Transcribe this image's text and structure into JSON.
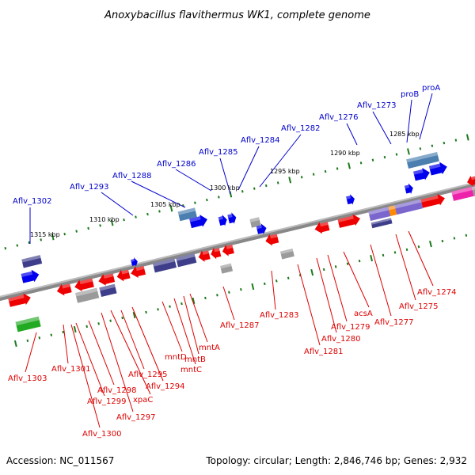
{
  "title": "Anoxybacillus flavithermus WK1, complete genome",
  "footer": {
    "accession": "Accession: NC_011567",
    "summary": "Topology: circular; Length: 2,846,746 bp; Genes: 2,932"
  },
  "colors": {
    "backbone": "#888888",
    "tick": "#1c7a1c",
    "label_top": "#0000cc",
    "label_bottom": "#dd0000",
    "gene_red": "#ee0000",
    "gene_blue": "#0000ee",
    "gene_navy": "#3d3d8a",
    "gene_grey": "#9a9a9a",
    "gene_green": "#22aa22",
    "gene_steel": "#4a7fb0",
    "gene_purple": "#7a66cc",
    "gene_pink": "#ee22aa",
    "gene_cyan": "#22dddd",
    "gene_orange": "#ff8800"
  },
  "scale_labels": [
    "1315 kbp",
    "1310 kbp",
    "1305 kbp",
    "1300 kbp",
    "1295 kbp",
    "1290 kbp",
    "1285 kbp"
  ],
  "labels_top": [
    "Aflv_1302",
    "Aflv_1293",
    "Aflv_1288",
    "Aflv_1286",
    "Aflv_1285",
    "Aflv_1284",
    "Aflv_1282",
    "Aflv_1276",
    "Aflv_1273",
    "proB",
    "proA"
  ],
  "labels_bottom": [
    "Aflv_1303",
    "Aflv_1301",
    "Aflv_1298",
    "Aflv_1299",
    "Aflv_1300",
    "Aflv_1297",
    "xpaC",
    "Aflv_1295",
    "Aflv_1294",
    "mntD",
    "mntC",
    "mntB",
    "mntA",
    "Aflv_1287",
    "Aflv_1283",
    "Aflv_1281",
    "Aflv_1280",
    "Aflv_1279",
    "acsA",
    "Aflv_1277",
    "Aflv_1275",
    "Aflv_1274"
  ]
}
